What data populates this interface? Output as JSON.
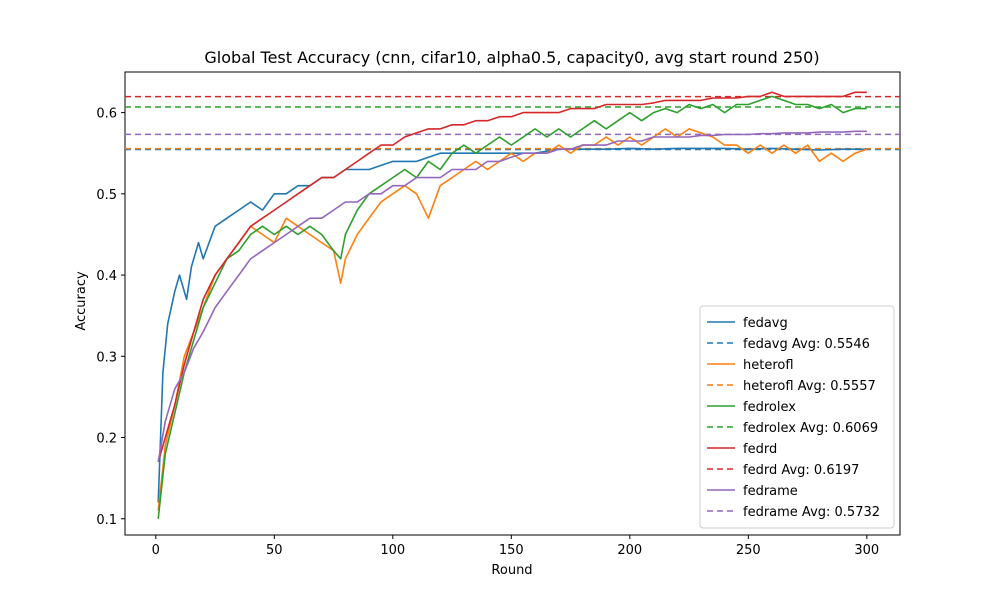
{
  "chart_data": {
    "type": "line",
    "title": "Global Test Accuracy (cnn, cifar10, alpha0.5, capacity0, avg start round 250)",
    "xlabel": "Round",
    "ylabel": "Accuracy",
    "xlim": [
      -13,
      314
    ],
    "ylim": [
      0.08,
      0.65
    ],
    "xticks": [
      "0",
      "50",
      "100",
      "150",
      "200",
      "250",
      "300"
    ],
    "yticks": [
      "0.1",
      "0.2",
      "0.3",
      "0.4",
      "0.5",
      "0.6"
    ],
    "grid": false,
    "legend_position": "lower-right",
    "series": [
      {
        "name": "fedavg",
        "color": "#1f77b4",
        "avg_label": "fedavg Avg: 0.5546",
        "avg": 0.5546,
        "points": [
          [
            1,
            0.12
          ],
          [
            3,
            0.28
          ],
          [
            5,
            0.34
          ],
          [
            8,
            0.38
          ],
          [
            10,
            0.4
          ],
          [
            13,
            0.37
          ],
          [
            15,
            0.41
          ],
          [
            18,
            0.44
          ],
          [
            20,
            0.42
          ],
          [
            25,
            0.46
          ],
          [
            30,
            0.47
          ],
          [
            35,
            0.48
          ],
          [
            40,
            0.49
          ],
          [
            45,
            0.48
          ],
          [
            50,
            0.5
          ],
          [
            55,
            0.5
          ],
          [
            60,
            0.51
          ],
          [
            65,
            0.51
          ],
          [
            70,
            0.52
          ],
          [
            75,
            0.52
          ],
          [
            80,
            0.53
          ],
          [
            90,
            0.53
          ],
          [
            100,
            0.54
          ],
          [
            110,
            0.54
          ],
          [
            120,
            0.55
          ],
          [
            130,
            0.55
          ],
          [
            140,
            0.55
          ],
          [
            150,
            0.55
          ],
          [
            160,
            0.55
          ],
          [
            170,
            0.555
          ],
          [
            180,
            0.555
          ],
          [
            190,
            0.555
          ],
          [
            200,
            0.556
          ],
          [
            210,
            0.555
          ],
          [
            220,
            0.556
          ],
          [
            230,
            0.556
          ],
          [
            240,
            0.556
          ],
          [
            250,
            0.555
          ],
          [
            260,
            0.556
          ],
          [
            270,
            0.555
          ],
          [
            280,
            0.554
          ],
          [
            290,
            0.555
          ],
          [
            300,
            0.555
          ]
        ]
      },
      {
        "name": "heterofl",
        "color": "#ff7f0e",
        "avg_label": "heterofl Avg: 0.5557",
        "avg": 0.5557,
        "points": [
          [
            1,
            0.11
          ],
          [
            4,
            0.19
          ],
          [
            8,
            0.24
          ],
          [
            12,
            0.3
          ],
          [
            16,
            0.33
          ],
          [
            20,
            0.36
          ],
          [
            25,
            0.4
          ],
          [
            30,
            0.42
          ],
          [
            35,
            0.44
          ],
          [
            40,
            0.46
          ],
          [
            45,
            0.45
          ],
          [
            50,
            0.44
          ],
          [
            55,
            0.47
          ],
          [
            60,
            0.46
          ],
          [
            65,
            0.45
          ],
          [
            70,
            0.44
          ],
          [
            75,
            0.43
          ],
          [
            78,
            0.39
          ],
          [
            80,
            0.42
          ],
          [
            85,
            0.45
          ],
          [
            90,
            0.47
          ],
          [
            95,
            0.49
          ],
          [
            100,
            0.5
          ],
          [
            105,
            0.51
          ],
          [
            110,
            0.5
          ],
          [
            115,
            0.47
          ],
          [
            120,
            0.51
          ],
          [
            125,
            0.52
          ],
          [
            130,
            0.53
          ],
          [
            135,
            0.54
          ],
          [
            140,
            0.53
          ],
          [
            145,
            0.54
          ],
          [
            150,
            0.55
          ],
          [
            155,
            0.54
          ],
          [
            160,
            0.55
          ],
          [
            165,
            0.55
          ],
          [
            170,
            0.56
          ],
          [
            175,
            0.55
          ],
          [
            180,
            0.56
          ],
          [
            185,
            0.56
          ],
          [
            190,
            0.57
          ],
          [
            195,
            0.56
          ],
          [
            200,
            0.57
          ],
          [
            205,
            0.56
          ],
          [
            210,
            0.57
          ],
          [
            215,
            0.58
          ],
          [
            220,
            0.57
          ],
          [
            225,
            0.58
          ],
          [
            230,
            0.575
          ],
          [
            235,
            0.57
          ],
          [
            240,
            0.56
          ],
          [
            245,
            0.56
          ],
          [
            250,
            0.55
          ],
          [
            255,
            0.56
          ],
          [
            260,
            0.55
          ],
          [
            265,
            0.56
          ],
          [
            270,
            0.55
          ],
          [
            275,
            0.56
          ],
          [
            280,
            0.54
          ],
          [
            285,
            0.55
          ],
          [
            290,
            0.54
          ],
          [
            295,
            0.55
          ],
          [
            300,
            0.555
          ]
        ]
      },
      {
        "name": "fedrolex",
        "color": "#2ca02c",
        "avg_label": "fedrolex Avg: 0.6069",
        "avg": 0.6069,
        "points": [
          [
            1,
            0.1
          ],
          [
            4,
            0.18
          ],
          [
            8,
            0.23
          ],
          [
            12,
            0.28
          ],
          [
            16,
            0.32
          ],
          [
            20,
            0.36
          ],
          [
            25,
            0.39
          ],
          [
            30,
            0.42
          ],
          [
            35,
            0.43
          ],
          [
            40,
            0.45
          ],
          [
            45,
            0.46
          ],
          [
            50,
            0.45
          ],
          [
            55,
            0.46
          ],
          [
            60,
            0.45
          ],
          [
            65,
            0.46
          ],
          [
            70,
            0.45
          ],
          [
            75,
            0.43
          ],
          [
            78,
            0.42
          ],
          [
            80,
            0.45
          ],
          [
            85,
            0.48
          ],
          [
            90,
            0.5
          ],
          [
            95,
            0.51
          ],
          [
            100,
            0.52
          ],
          [
            105,
            0.53
          ],
          [
            110,
            0.52
          ],
          [
            115,
            0.54
          ],
          [
            120,
            0.53
          ],
          [
            125,
            0.55
          ],
          [
            130,
            0.56
          ],
          [
            135,
            0.55
          ],
          [
            140,
            0.56
          ],
          [
            145,
            0.57
          ],
          [
            150,
            0.56
          ],
          [
            155,
            0.57
          ],
          [
            160,
            0.58
          ],
          [
            165,
            0.57
          ],
          [
            170,
            0.58
          ],
          [
            175,
            0.57
          ],
          [
            180,
            0.58
          ],
          [
            185,
            0.59
          ],
          [
            190,
            0.58
          ],
          [
            195,
            0.59
          ],
          [
            200,
            0.6
          ],
          [
            205,
            0.59
          ],
          [
            210,
            0.6
          ],
          [
            215,
            0.605
          ],
          [
            220,
            0.6
          ],
          [
            225,
            0.61
          ],
          [
            230,
            0.605
          ],
          [
            235,
            0.61
          ],
          [
            240,
            0.6
          ],
          [
            245,
            0.61
          ],
          [
            250,
            0.61
          ],
          [
            255,
            0.615
          ],
          [
            260,
            0.62
          ],
          [
            265,
            0.615
          ],
          [
            270,
            0.61
          ],
          [
            275,
            0.61
          ],
          [
            280,
            0.605
          ],
          [
            285,
            0.61
          ],
          [
            290,
            0.6
          ],
          [
            295,
            0.605
          ],
          [
            300,
            0.605
          ]
        ]
      },
      {
        "name": "fedrd",
        "color": "#d62728",
        "avg_label": "fedrd Avg: 0.6197",
        "avg": 0.6197,
        "points": [
          [
            1,
            0.17
          ],
          [
            4,
            0.2
          ],
          [
            8,
            0.24
          ],
          [
            12,
            0.29
          ],
          [
            16,
            0.33
          ],
          [
            20,
            0.37
          ],
          [
            25,
            0.4
          ],
          [
            30,
            0.42
          ],
          [
            35,
            0.44
          ],
          [
            40,
            0.46
          ],
          [
            45,
            0.47
          ],
          [
            50,
            0.48
          ],
          [
            55,
            0.49
          ],
          [
            60,
            0.5
          ],
          [
            65,
            0.51
          ],
          [
            70,
            0.52
          ],
          [
            75,
            0.52
          ],
          [
            80,
            0.53
          ],
          [
            85,
            0.54
          ],
          [
            90,
            0.55
          ],
          [
            95,
            0.56
          ],
          [
            100,
            0.56
          ],
          [
            105,
            0.57
          ],
          [
            110,
            0.575
          ],
          [
            115,
            0.58
          ],
          [
            120,
            0.58
          ],
          [
            125,
            0.585
          ],
          [
            130,
            0.585
          ],
          [
            135,
            0.59
          ],
          [
            140,
            0.59
          ],
          [
            145,
            0.595
          ],
          [
            150,
            0.595
          ],
          [
            155,
            0.6
          ],
          [
            160,
            0.6
          ],
          [
            165,
            0.6
          ],
          [
            170,
            0.6
          ],
          [
            175,
            0.605
          ],
          [
            180,
            0.605
          ],
          [
            185,
            0.605
          ],
          [
            190,
            0.61
          ],
          [
            195,
            0.61
          ],
          [
            200,
            0.61
          ],
          [
            205,
            0.61
          ],
          [
            210,
            0.612
          ],
          [
            215,
            0.615
          ],
          [
            220,
            0.615
          ],
          [
            225,
            0.615
          ],
          [
            230,
            0.615
          ],
          [
            235,
            0.618
          ],
          [
            240,
            0.618
          ],
          [
            245,
            0.618
          ],
          [
            250,
            0.62
          ],
          [
            255,
            0.62
          ],
          [
            260,
            0.625
          ],
          [
            265,
            0.62
          ],
          [
            270,
            0.62
          ],
          [
            275,
            0.62
          ],
          [
            280,
            0.62
          ],
          [
            285,
            0.62
          ],
          [
            290,
            0.62
          ],
          [
            295,
            0.625
          ],
          [
            300,
            0.625
          ]
        ]
      },
      {
        "name": "fedrame",
        "color": "#9467bd",
        "avg_label": "fedrame Avg: 0.5732",
        "avg": 0.5732,
        "points": [
          [
            1,
            0.17
          ],
          [
            4,
            0.22
          ],
          [
            8,
            0.26
          ],
          [
            12,
            0.28
          ],
          [
            16,
            0.31
          ],
          [
            20,
            0.33
          ],
          [
            25,
            0.36
          ],
          [
            30,
            0.38
          ],
          [
            35,
            0.4
          ],
          [
            40,
            0.42
          ],
          [
            45,
            0.43
          ],
          [
            50,
            0.44
          ],
          [
            55,
            0.45
          ],
          [
            60,
            0.46
          ],
          [
            65,
            0.47
          ],
          [
            70,
            0.47
          ],
          [
            75,
            0.48
          ],
          [
            80,
            0.49
          ],
          [
            85,
            0.49
          ],
          [
            90,
            0.5
          ],
          [
            95,
            0.5
          ],
          [
            100,
            0.51
          ],
          [
            105,
            0.51
          ],
          [
            110,
            0.52
          ],
          [
            115,
            0.52
          ],
          [
            120,
            0.52
          ],
          [
            125,
            0.53
          ],
          [
            130,
            0.53
          ],
          [
            135,
            0.53
          ],
          [
            140,
            0.54
          ],
          [
            145,
            0.54
          ],
          [
            150,
            0.545
          ],
          [
            155,
            0.55
          ],
          [
            160,
            0.55
          ],
          [
            165,
            0.55
          ],
          [
            170,
            0.555
          ],
          [
            175,
            0.555
          ],
          [
            180,
            0.56
          ],
          [
            185,
            0.56
          ],
          [
            190,
            0.56
          ],
          [
            195,
            0.565
          ],
          [
            200,
            0.565
          ],
          [
            205,
            0.565
          ],
          [
            210,
            0.57
          ],
          [
            215,
            0.57
          ],
          [
            220,
            0.57
          ],
          [
            225,
            0.57
          ],
          [
            230,
            0.572
          ],
          [
            235,
            0.572
          ],
          [
            240,
            0.573
          ],
          [
            245,
            0.573
          ],
          [
            250,
            0.573
          ],
          [
            255,
            0.574
          ],
          [
            260,
            0.574
          ],
          [
            265,
            0.575
          ],
          [
            270,
            0.575
          ],
          [
            275,
            0.575
          ],
          [
            280,
            0.576
          ],
          [
            285,
            0.576
          ],
          [
            290,
            0.576
          ],
          [
            295,
            0.577
          ],
          [
            300,
            0.577
          ]
        ]
      }
    ]
  }
}
